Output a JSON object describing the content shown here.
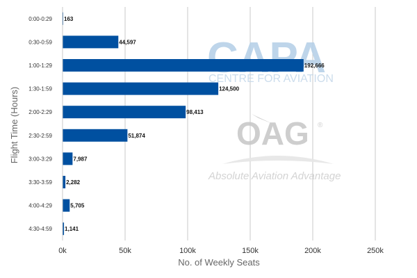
{
  "chart_data": {
    "type": "bar",
    "orientation": "horizontal",
    "categories": [
      "0:00-0:29",
      "0:30-0:59",
      "1:00-1:29",
      "1:30-1:59",
      "2:00-2:29",
      "2:30-2:59",
      "3:00-3:29",
      "3:30-3:59",
      "4:00-4:29",
      "4:30-4:59"
    ],
    "values": [
      163,
      44597,
      192666,
      124500,
      98413,
      51874,
      7987,
      2282,
      5705,
      1141
    ],
    "data_labels": [
      "163",
      "44,597",
      "192,666",
      "124,500",
      "98,413",
      "51,874",
      "7,987",
      "2,282",
      "5,705",
      "1,141"
    ],
    "xlabel": "No. of Weekly Seats",
    "ylabel": "Flight Time (Hours)",
    "xlim": [
      0,
      250000
    ],
    "x_ticks": [
      0,
      50000,
      100000,
      150000,
      200000,
      250000
    ],
    "x_tick_labels": [
      "0k",
      "50k",
      "100k",
      "150k",
      "200k",
      "250k"
    ],
    "grid": true,
    "legend": "none",
    "bar_color": "#0050a0"
  },
  "watermarks": {
    "capa": "CAPA",
    "capa_sub": "CENTRE FOR AVIATION",
    "oag": "OAG",
    "oag_mark": "®",
    "tagline": "Absolute Aviation Advantage"
  },
  "colors": {
    "grid": "#c8c8c8",
    "capa": "#b7d1e8",
    "oag": "#c9c9c9"
  }
}
